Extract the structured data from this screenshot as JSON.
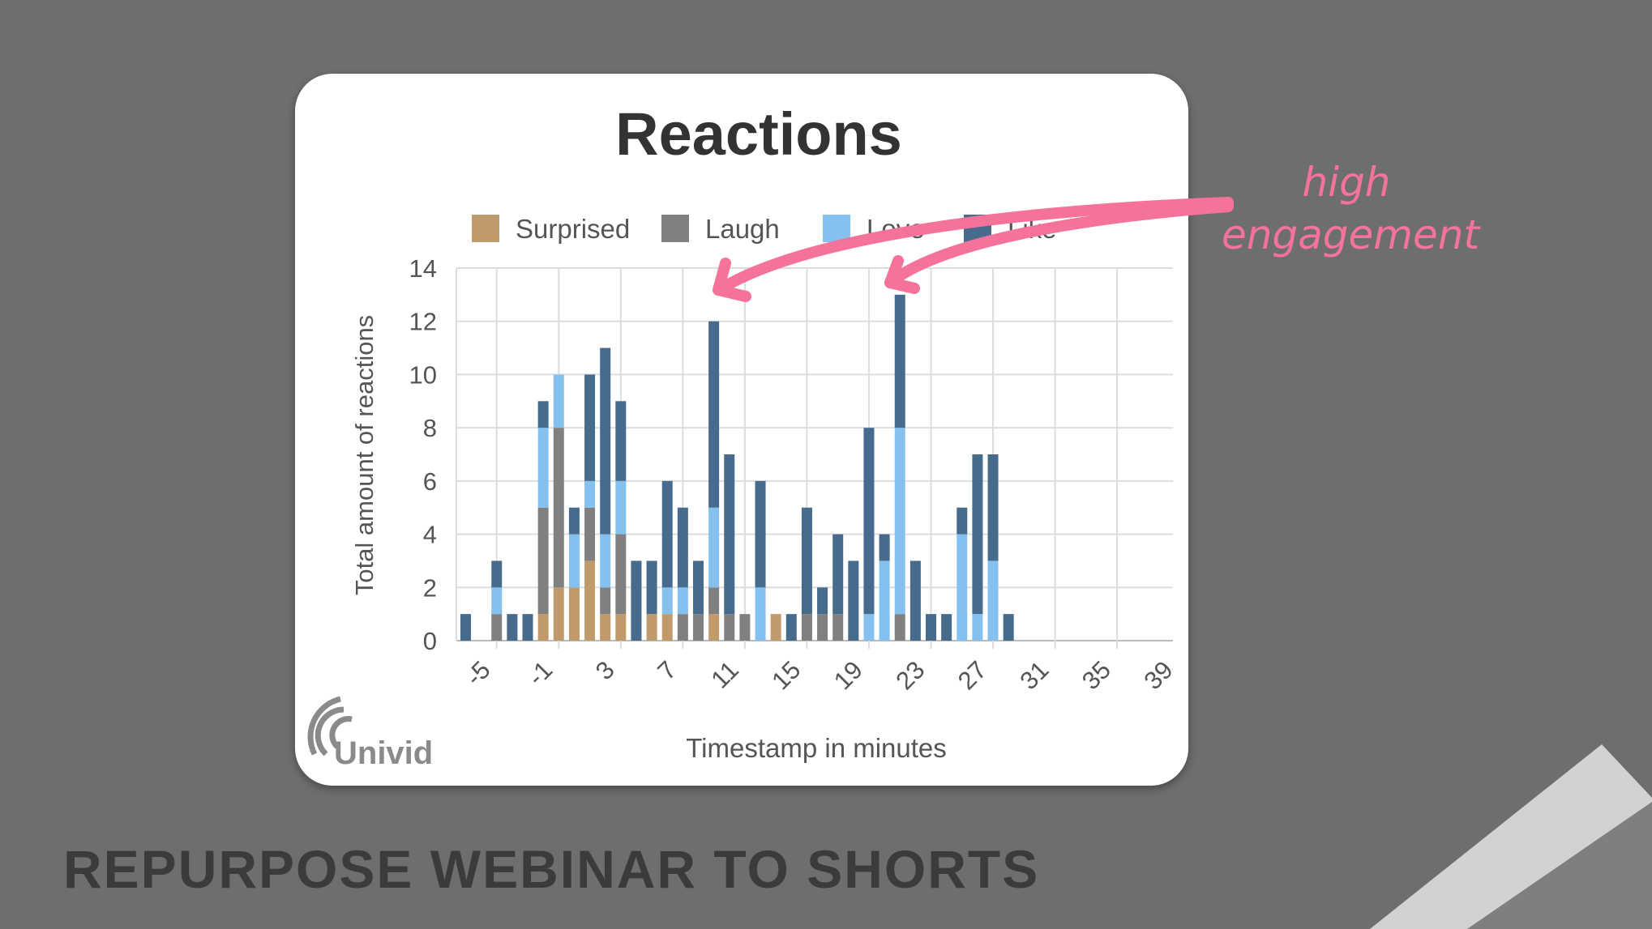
{
  "slide": {
    "title": "REPURPOSE WEBINAR TO SHORTS",
    "annotation_line1": "high",
    "annotation_line2": "engagement",
    "annotation_color": "#f5739a",
    "logo_text": "Univid"
  },
  "chart_data": {
    "type": "bar",
    "stacked": true,
    "title": "Reactions",
    "xlabel": "Timestamp in minutes",
    "ylabel": "Total amount of reactions",
    "ylim": [
      0,
      14
    ],
    "yticks": [
      0,
      2,
      4,
      6,
      8,
      10,
      12,
      14
    ],
    "xlim": [
      -7.6,
      38.6
    ],
    "xticks": [
      -5,
      -1,
      3,
      7,
      11,
      15,
      19,
      23,
      27,
      31,
      35,
      39
    ],
    "grid": true,
    "legend_position": "top",
    "x": [
      -7,
      -6,
      -5,
      -4,
      -3,
      -2,
      -1,
      0,
      1,
      2,
      3,
      4,
      5,
      6,
      7,
      8,
      9,
      10,
      11,
      12,
      13,
      14,
      15,
      16,
      17,
      18,
      19,
      20,
      21,
      22,
      23,
      24,
      25,
      26,
      27,
      28
    ],
    "series": [
      {
        "name": "Surprised",
        "color": "#c19a6b",
        "values": [
          0,
          0,
          0,
          0,
          0,
          1,
          2,
          2,
          3,
          1,
          1,
          0,
          1,
          1,
          0,
          0,
          1,
          0,
          0,
          0,
          1,
          0,
          0,
          0,
          0,
          0,
          0,
          0,
          0,
          0,
          0,
          0,
          0,
          0,
          0,
          0
        ]
      },
      {
        "name": "Laugh",
        "color": "#808080",
        "values": [
          0,
          0,
          1,
          0,
          0,
          4,
          6,
          0,
          2,
          1,
          3,
          0,
          0,
          0,
          1,
          1,
          1,
          1,
          1,
          0,
          0,
          0,
          1,
          1,
          1,
          0,
          0,
          0,
          1,
          0,
          0,
          0,
          0,
          0,
          0,
          0
        ]
      },
      {
        "name": "Love",
        "color": "#85c1ef",
        "values": [
          0,
          0,
          1,
          0,
          0,
          3,
          2,
          2,
          1,
          2,
          2,
          0,
          0,
          1,
          1,
          0,
          3,
          0,
          0,
          2,
          0,
          0,
          0,
          0,
          0,
          0,
          1,
          3,
          7,
          0,
          0,
          0,
          4,
          1,
          3,
          0
        ]
      },
      {
        "name": "Like",
        "color": "#466b8c",
        "values": [
          1,
          0,
          1,
          1,
          1,
          1,
          0,
          1,
          4,
          7,
          3,
          3,
          2,
          4,
          3,
          2,
          7,
          6,
          0,
          4,
          0,
          1,
          4,
          1,
          3,
          3,
          7,
          1,
          5,
          3,
          1,
          1,
          1,
          6,
          4,
          1
        ]
      }
    ]
  }
}
